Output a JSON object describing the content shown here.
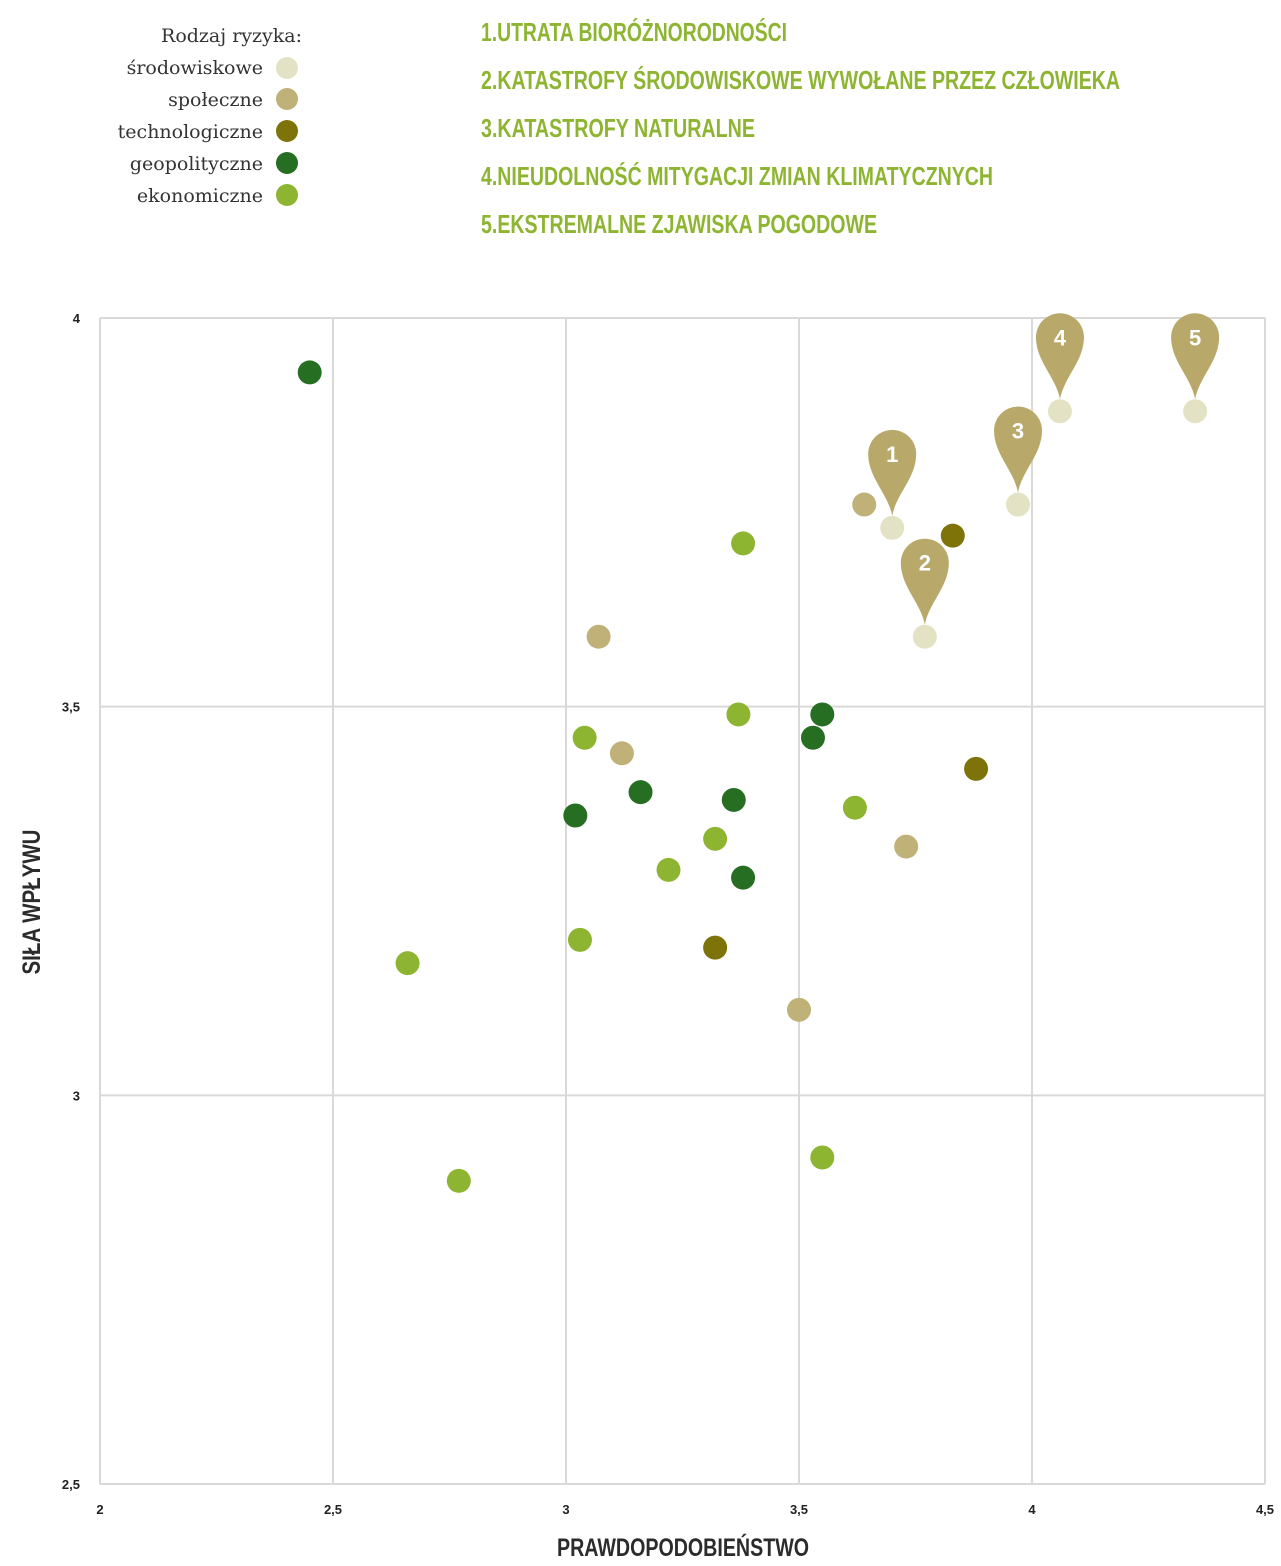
{
  "legend": {
    "title": "Rodzaj ryzyka:",
    "items": [
      {
        "label": "środowiskowe",
        "color": "#e4e2c4"
      },
      {
        "label": "społeczne",
        "color": "#bfb177"
      },
      {
        "label": "technologiczne",
        "color": "#7e7308"
      },
      {
        "label": "geopolityczne",
        "color": "#256e22"
      },
      {
        "label": "ekonomiczne",
        "color": "#8db531"
      }
    ]
  },
  "top_list": [
    "1.UTRATA BIORÓŻNORODNOŚCI",
    "2.KATASTROFY ŚRODOWISKOWE WYWOŁANE PRZEZ CZŁOWIEKA",
    "3.KATASTROFY NATURALNE",
    "4.NIEUDOLNOŚĆ MITYGACJI ZMIAN KLIMATYCZNYCH",
    "5.EKSTREMALNE ZJAWISKA POGODOWE"
  ],
  "chart_data": {
    "type": "scatter",
    "title": "",
    "xlabel": "PRAWDOPODOBIEŃSTWO",
    "ylabel": "SIŁA WPŁYWU",
    "xlim": [
      2,
      4.5
    ],
    "ylim": [
      2.5,
      4
    ],
    "x_ticks": [
      "2",
      "2,5",
      "3",
      "3,5",
      "4",
      "4,5"
    ],
    "y_ticks": [
      "2,5",
      "3",
      "3,5",
      "4"
    ],
    "x_tick_values": [
      2,
      2.5,
      3,
      3.5,
      4,
      4.5
    ],
    "y_tick_values": [
      2.5,
      3,
      3.5,
      4
    ],
    "grid": true,
    "legend_position": "top-left",
    "points": [
      {
        "x": 2.45,
        "y": 3.93,
        "category": "geopolityczne"
      },
      {
        "x": 3.38,
        "y": 3.71,
        "category": "ekonomiczne"
      },
      {
        "x": 3.07,
        "y": 3.59,
        "category": "społeczne"
      },
      {
        "x": 3.64,
        "y": 3.76,
        "category": "społeczne"
      },
      {
        "x": 3.7,
        "y": 3.73,
        "category": "środowiskowe",
        "pin": "1"
      },
      {
        "x": 3.83,
        "y": 3.72,
        "category": "technologiczne"
      },
      {
        "x": 3.77,
        "y": 3.59,
        "category": "środowiskowe",
        "pin": "2"
      },
      {
        "x": 3.97,
        "y": 3.76,
        "category": "środowiskowe",
        "pin": "3"
      },
      {
        "x": 4.06,
        "y": 3.88,
        "category": "środowiskowe",
        "pin": "4"
      },
      {
        "x": 4.35,
        "y": 3.88,
        "category": "środowiskowe",
        "pin": "5"
      },
      {
        "x": 3.37,
        "y": 3.49,
        "category": "ekonomiczne"
      },
      {
        "x": 3.55,
        "y": 3.49,
        "category": "geopolityczne"
      },
      {
        "x": 3.53,
        "y": 3.46,
        "category": "geopolityczne"
      },
      {
        "x": 3.04,
        "y": 3.46,
        "category": "ekonomiczne"
      },
      {
        "x": 3.12,
        "y": 3.44,
        "category": "społeczne"
      },
      {
        "x": 3.88,
        "y": 3.42,
        "category": "technologiczne"
      },
      {
        "x": 3.16,
        "y": 3.39,
        "category": "geopolityczne"
      },
      {
        "x": 3.36,
        "y": 3.38,
        "category": "geopolityczne"
      },
      {
        "x": 3.02,
        "y": 3.36,
        "category": "geopolityczne"
      },
      {
        "x": 3.62,
        "y": 3.37,
        "category": "ekonomiczne"
      },
      {
        "x": 3.32,
        "y": 3.33,
        "category": "ekonomiczne"
      },
      {
        "x": 3.73,
        "y": 3.32,
        "category": "społeczne"
      },
      {
        "x": 3.22,
        "y": 3.29,
        "category": "ekonomiczne"
      },
      {
        "x": 3.38,
        "y": 3.28,
        "category": "geopolityczne"
      },
      {
        "x": 3.03,
        "y": 3.2,
        "category": "ekonomiczne"
      },
      {
        "x": 3.32,
        "y": 3.19,
        "category": "technologiczne"
      },
      {
        "x": 2.66,
        "y": 3.17,
        "category": "ekonomiczne"
      },
      {
        "x": 3.5,
        "y": 3.11,
        "category": "społeczne"
      },
      {
        "x": 3.55,
        "y": 2.92,
        "category": "ekonomiczne"
      },
      {
        "x": 2.77,
        "y": 2.89,
        "category": "ekonomiczne"
      }
    ]
  },
  "colors": {
    "grid": "#d9d9d9",
    "pin": "#b8a96a",
    "heading": "#8db531"
  }
}
